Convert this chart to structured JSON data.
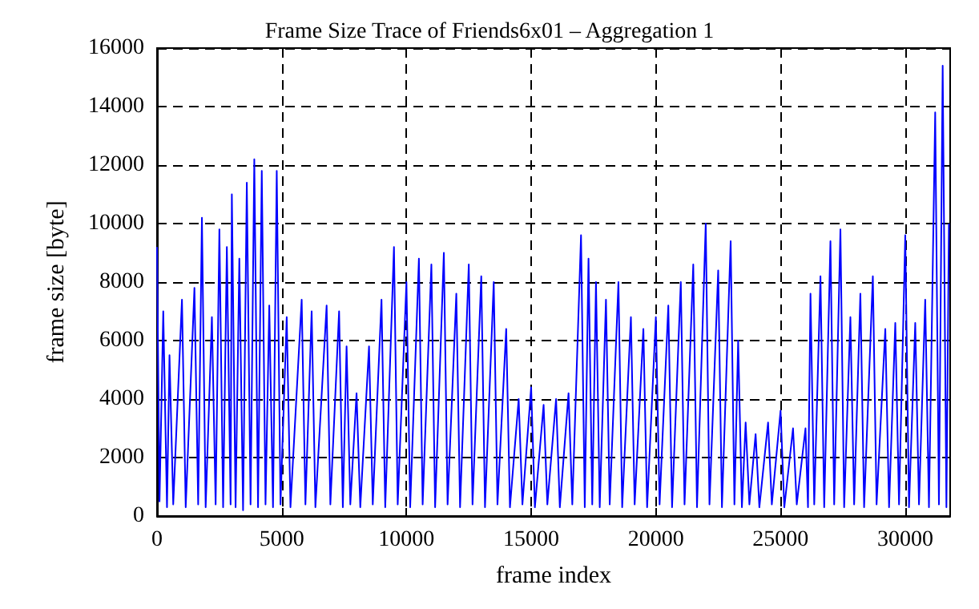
{
  "chart_data": {
    "type": "line",
    "title": "Frame Size Trace of Friends6x01 – Aggregation 1",
    "xlabel": "frame index",
    "ylabel": "frame size [byte]",
    "x": [
      0,
      100,
      250,
      400,
      500,
      650,
      1000,
      1150,
      1500,
      1650,
      1800,
      1950,
      2200,
      2350,
      2500,
      2650,
      2800,
      2950,
      3000,
      3150,
      3300,
      3450,
      3600,
      3750,
      3900,
      4050,
      4200,
      4350,
      4500,
      4650,
      4800,
      4950,
      5200,
      5350,
      5800,
      5950,
      6200,
      6350,
      6800,
      6950,
      7300,
      7450,
      7600,
      7750,
      8000,
      8150,
      8500,
      8650,
      9000,
      9150,
      9500,
      9650,
      10000,
      10150,
      10500,
      10650,
      11000,
      11150,
      11500,
      11650,
      12000,
      12150,
      12500,
      12650,
      13000,
      13150,
      13500,
      13650,
      14000,
      14150,
      14500,
      14650,
      15000,
      15150,
      15500,
      15650,
      16000,
      16150,
      16500,
      16650,
      17000,
      17150,
      17300,
      17450,
      17600,
      17750,
      18000,
      18150,
      18500,
      18650,
      19000,
      19150,
      19500,
      19650,
      20000,
      20150,
      20500,
      20650,
      21000,
      21150,
      21500,
      21650,
      22000,
      22150,
      22500,
      22650,
      23000,
      23150,
      23300,
      23450,
      23600,
      23750,
      24000,
      24150,
      24500,
      24650,
      25000,
      25150,
      25500,
      25650,
      26000,
      26100,
      26200,
      26350,
      26600,
      26750,
      27000,
      27150,
      27400,
      27550,
      27800,
      27950,
      28200,
      28350,
      28700,
      28850,
      29200,
      29350,
      29600,
      29750,
      30000,
      30150,
      30400,
      30550,
      30800,
      30950,
      31200,
      31350,
      31500,
      31650,
      31750
    ],
    "series": [
      {
        "color": "#0000ff",
        "values": [
          9200,
          500,
          7000,
          300,
          5500,
          400,
          7400,
          300,
          7800,
          400,
          10200,
          300,
          6800,
          400,
          9800,
          300,
          9200,
          400,
          11000,
          300,
          8800,
          200,
          11400,
          400,
          12200,
          300,
          11800,
          400,
          7200,
          300,
          11800,
          400,
          6800,
          300,
          7400,
          400,
          7000,
          300,
          7200,
          400,
          7000,
          300,
          5800,
          400,
          4200,
          300,
          5800,
          400,
          7400,
          300,
          9200,
          400,
          8000,
          300,
          8800,
          400,
          8600,
          300,
          9000,
          400,
          7600,
          300,
          8600,
          400,
          8200,
          300,
          8000,
          400,
          6400,
          300,
          4000,
          400,
          4400,
          300,
          3800,
          400,
          4000,
          300,
          4200,
          400,
          9600,
          300,
          8800,
          400,
          8000,
          300,
          7400,
          400,
          8000,
          300,
          6800,
          400,
          6400,
          300,
          6800,
          400,
          7200,
          300,
          8000,
          400,
          8600,
          300,
          10000,
          400,
          8400,
          300,
          9400,
          400,
          6000,
          300,
          3200,
          400,
          2800,
          300,
          3200,
          400,
          3600,
          300,
          3000,
          400,
          3000,
          300,
          7600,
          400,
          8200,
          300,
          9400,
          400,
          9800,
          300,
          6800,
          400,
          7600,
          300,
          8200,
          400,
          6400,
          300,
          6600,
          400,
          9600,
          300,
          6600,
          400,
          7400,
          300,
          13800,
          400,
          15400,
          300,
          10000
        ]
      }
    ],
    "xlim": [
      0,
      31800
    ],
    "xticks": [
      0,
      5000,
      10000,
      15000,
      20000,
      25000,
      30000
    ],
    "ylim": [
      0,
      16000
    ],
    "yticks": [
      0,
      2000,
      4000,
      6000,
      8000,
      10000,
      12000,
      14000,
      16000
    ],
    "grid": true,
    "line_style": "solid"
  }
}
